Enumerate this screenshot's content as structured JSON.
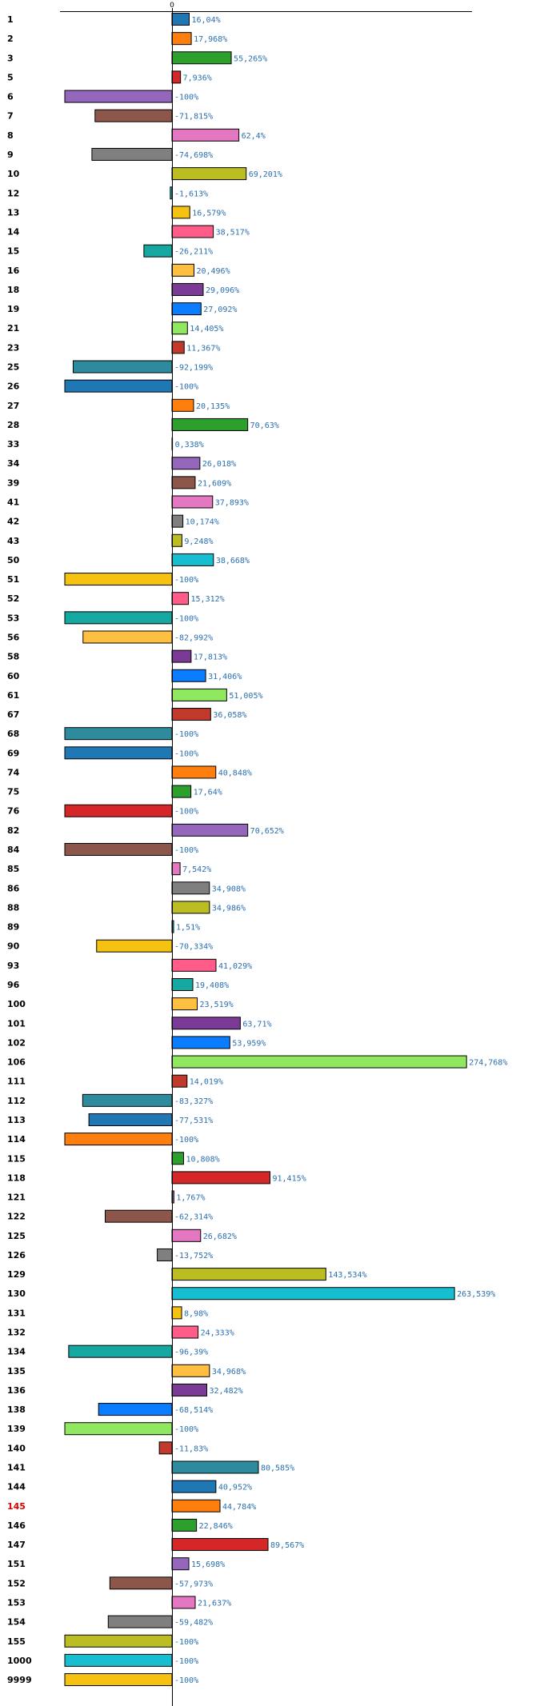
{
  "chart_data": {
    "type": "bar",
    "orientation": "horizontal",
    "title": "",
    "xlabel": "",
    "ylabel": "",
    "xlim": [
      -100,
      274.768
    ],
    "zero_tick_label": "0",
    "value_unit": "%",
    "highlight_category": "145",
    "colors": [
      "#1f77b4",
      "#ff7f0e",
      "#2ca02c",
      "#d62728",
      "#9467bd",
      "#8c564b",
      "#e377c2",
      "#7f7f7f",
      "#bcbd22",
      "#17becf",
      "#f5c211",
      "#ff5c8a",
      "#14a8a0",
      "#ffbf40",
      "#7b3a96",
      "#0a7cff",
      "#90e860",
      "#c0392b",
      "#2e8b9e"
    ],
    "categories": [
      "1",
      "2",
      "3",
      "5",
      "6",
      "7",
      "8",
      "9",
      "10",
      "12",
      "13",
      "14",
      "15",
      "16",
      "18",
      "19",
      "21",
      "23",
      "25",
      "26",
      "27",
      "28",
      "33",
      "34",
      "39",
      "41",
      "42",
      "43",
      "50",
      "51",
      "52",
      "53",
      "56",
      "58",
      "60",
      "61",
      "67",
      "68",
      "69",
      "74",
      "75",
      "76",
      "82",
      "84",
      "85",
      "86",
      "88",
      "89",
      "90",
      "93",
      "96",
      "100",
      "101",
      "102",
      "106",
      "111",
      "112",
      "113",
      "114",
      "115",
      "118",
      "121",
      "122",
      "125",
      "126",
      "129",
      "130",
      "131",
      "132",
      "134",
      "135",
      "136",
      "138",
      "139",
      "140",
      "141",
      "144",
      "145",
      "146",
      "147",
      "151",
      "152",
      "153",
      "154",
      "155",
      "1000",
      "9999"
    ],
    "values": [
      16.04,
      17.968,
      55.265,
      7.936,
      -100,
      -71.815,
      62.4,
      -74.698,
      69.201,
      -1.613,
      16.579,
      38.517,
      -26.211,
      20.496,
      29.096,
      27.092,
      14.405,
      11.367,
      -92.199,
      -100,
      20.135,
      70.63,
      0.338,
      26.018,
      21.609,
      37.893,
      10.174,
      9.248,
      38.668,
      -100,
      15.312,
      -100,
      -82.992,
      17.813,
      31.406,
      51.005,
      36.058,
      -100,
      -100,
      40.848,
      17.64,
      -100,
      70.652,
      -100,
      7.542,
      34.908,
      34.986,
      1.51,
      -70.334,
      41.029,
      19.408,
      23.519,
      63.71,
      53.959,
      274.768,
      14.019,
      -83.327,
      -77.531,
      -100,
      10.808,
      91.415,
      1.767,
      -62.314,
      26.682,
      -13.752,
      143.534,
      263.539,
      8.98,
      24.333,
      -96.39,
      34.968,
      32.482,
      -68.514,
      -100,
      -11.83,
      80.585,
      40.952,
      44.784,
      22.846,
      89.567,
      15.698,
      -57.973,
      21.637,
      -59.482,
      -100,
      -100,
      -100
    ],
    "value_labels": [
      "16,04%",
      "17,968%",
      "55,265%",
      "7,936%",
      "-100%",
      "-71,815%",
      "62,4%",
      "-74,698%",
      "69,201%",
      "-1,613%",
      "16,579%",
      "38,517%",
      "-26,211%",
      "20,496%",
      "29,096%",
      "27,092%",
      "14,405%",
      "11,367%",
      "-92,199%",
      "-100%",
      "20,135%",
      "70,63%",
      "0,338%",
      "26,018%",
      "21,609%",
      "37,893%",
      "10,174%",
      "9,248%",
      "38,668%",
      "-100%",
      "15,312%",
      "-100%",
      "-82,992%",
      "17,813%",
      "31,406%",
      "51,005%",
      "36,058%",
      "-100%",
      "-100%",
      "40,848%",
      "17,64%",
      "-100%",
      "70,652%",
      "-100%",
      "7,542%",
      "34,908%",
      "34,986%",
      "1,51%",
      "-70,334%",
      "41,029%",
      "19,408%",
      "23,519%",
      "63,71%",
      "53,959%",
      "274,768%",
      "14,019%",
      "-83,327%",
      "-77,531%",
      "-100%",
      "10,808%",
      "91,415%",
      "1,767%",
      "-62,314%",
      "26,682%",
      "-13,752%",
      "143,534%",
      "263,539%",
      "8,98%",
      "24,333%",
      "-96,39%",
      "34,968%",
      "32,482%",
      "-68,514%",
      "-100%",
      "-11,83%",
      "80,585%",
      "40,952%",
      "44,784%",
      "22,846%",
      "89,567%",
      "15,698%",
      "-57,973%",
      "21,637%",
      "-59,482%",
      "-100%",
      "-100%",
      "-100%"
    ]
  }
}
